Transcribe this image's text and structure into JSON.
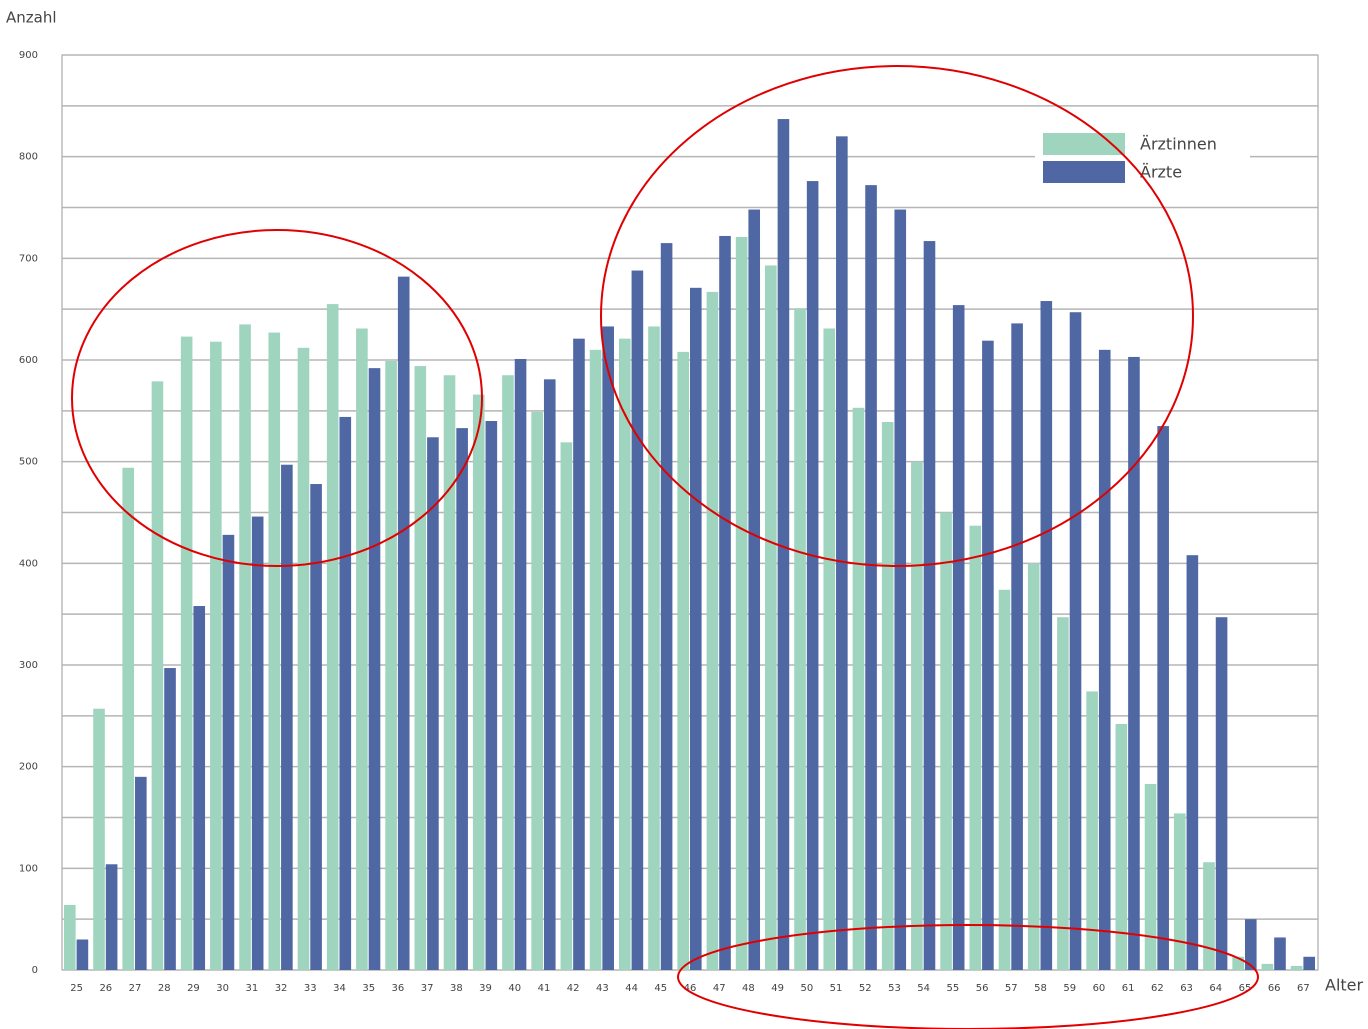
{
  "chart_data": {
    "type": "bar",
    "y_label": "Anzahl",
    "x_label": "Alter",
    "categories": [
      "25",
      "26",
      "27",
      "28",
      "29",
      "30",
      "31",
      "32",
      "33",
      "34",
      "35",
      "36",
      "37",
      "38",
      "39",
      "40",
      "41",
      "42",
      "43",
      "44",
      "45",
      "46",
      "47",
      "48",
      "49",
      "50",
      "51",
      "52",
      "53",
      "54",
      "55",
      "56",
      "57",
      "58",
      "59",
      "60",
      "61",
      "62",
      "63",
      "64",
      "65",
      "66",
      "67"
    ],
    "series": [
      {
        "name": "Ärztinnen",
        "color": "#9fd4bf",
        "values": [
          64,
          257,
          494,
          579,
          623,
          618,
          635,
          627,
          612,
          655,
          631,
          599,
          594,
          585,
          566,
          585,
          549,
          519,
          610,
          621,
          633,
          608,
          667,
          721,
          693,
          651,
          631,
          553,
          539,
          500,
          450,
          437,
          374,
          400,
          347,
          274,
          242,
          183,
          154,
          106,
          13,
          6,
          4
        ]
      },
      {
        "name": "Ärzte",
        "color": "#4f67a3",
        "values": [
          30,
          104,
          190,
          297,
          358,
          428,
          446,
          497,
          478,
          544,
          592,
          682,
          524,
          533,
          540,
          601,
          581,
          621,
          633,
          688,
          715,
          671,
          722,
          748,
          837,
          776,
          820,
          772,
          748,
          717,
          654,
          619,
          636,
          658,
          647,
          610,
          603,
          535,
          408,
          347,
          50,
          32,
          13
        ]
      }
    ],
    "ylim": [
      0,
      900
    ],
    "yticks": [
      0,
      100,
      200,
      300,
      400,
      500,
      600,
      700,
      800,
      900
    ],
    "grid": true,
    "legend": "upper right"
  }
}
